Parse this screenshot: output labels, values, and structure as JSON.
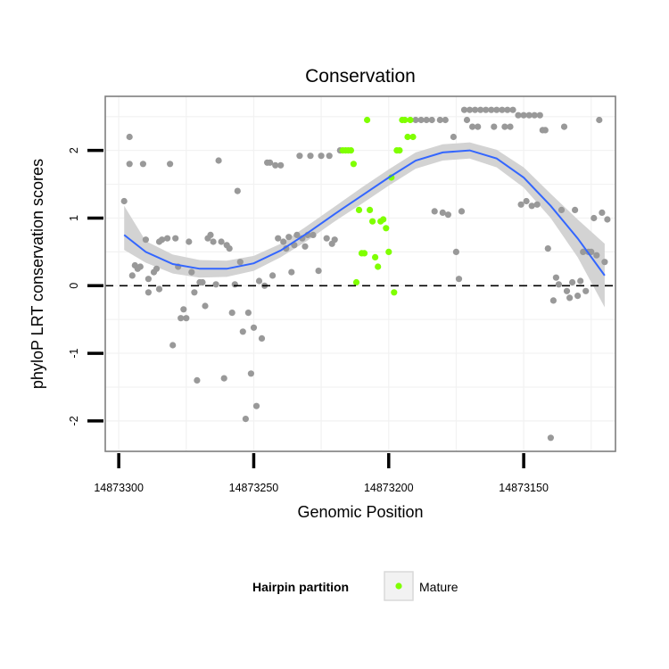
{
  "chart_data": {
    "type": "scatter",
    "title": "Conservation",
    "xlabel": "Genomic Position",
    "ylabel": "phyloP LRT conservation scores",
    "xlim": [
      14873305,
      14873116
    ],
    "ylim": [
      -2.45,
      2.8
    ],
    "x_reversed": true,
    "xticks": [
      14873300,
      14873250,
      14873200,
      14873150
    ],
    "xtick_labels": [
      "14873300",
      "14873250",
      "14873200",
      "14873150"
    ],
    "yticks": [
      -2,
      -1,
      0,
      1,
      2
    ],
    "ytick_labels": [
      "-2",
      "-1",
      "0",
      "1",
      "2"
    ],
    "hline": 0,
    "legend": {
      "title": "Hairpin partition",
      "entries": [
        {
          "label": "Mature",
          "color": "#7FFF00"
        }
      ],
      "position": "bottom"
    },
    "colors": {
      "other": "#999999",
      "mature": "#7FFF00",
      "smooth": "#3366FF",
      "ribbon": "#d3d3d3",
      "panel_border": "#7f7f7f",
      "grid": "#f2f2f2"
    },
    "series": [
      {
        "name": "Other",
        "color": "#999999",
        "points": [
          [
            14873298,
            1.25
          ],
          [
            14873296,
            2.2
          ],
          [
            14873296,
            1.8
          ],
          [
            14873295,
            0.15
          ],
          [
            14873294,
            0.3
          ],
          [
            14873293,
            0.25
          ],
          [
            14873292,
            0.28
          ],
          [
            14873291,
            1.8
          ],
          [
            14873290,
            0.68
          ],
          [
            14873289,
            0.1
          ],
          [
            14873289,
            -0.1
          ],
          [
            14873287,
            0.2
          ],
          [
            14873286,
            0.25
          ],
          [
            14873285,
            0.65
          ],
          [
            14873285,
            -0.05
          ],
          [
            14873284,
            0.68
          ],
          [
            14873282,
            0.7
          ],
          [
            14873281,
            1.8
          ],
          [
            14873280,
            -0.88
          ],
          [
            14873279,
            0.7
          ],
          [
            14873278,
            0.28
          ],
          [
            14873277,
            -0.48
          ],
          [
            14873276,
            -0.35
          ],
          [
            14873275,
            -0.48
          ],
          [
            14873274,
            0.65
          ],
          [
            14873273,
            0.2
          ],
          [
            14873272,
            -0.1
          ],
          [
            14873271,
            -1.4
          ],
          [
            14873270,
            0.05
          ],
          [
            14873269,
            0.05
          ],
          [
            14873268,
            -0.3
          ],
          [
            14873267,
            0.7
          ],
          [
            14873266,
            0.75
          ],
          [
            14873265,
            0.65
          ],
          [
            14873264,
            0.02
          ],
          [
            14873263,
            1.85
          ],
          [
            14873262,
            0.65
          ],
          [
            14873261,
            -1.37
          ],
          [
            14873260,
            0.6
          ],
          [
            14873259,
            0.55
          ],
          [
            14873258,
            -0.4
          ],
          [
            14873257,
            0.02
          ],
          [
            14873256,
            1.4
          ],
          [
            14873255,
            0.35
          ],
          [
            14873254,
            -0.68
          ],
          [
            14873253,
            -1.97
          ],
          [
            14873252,
            -0.4
          ],
          [
            14873251,
            -1.3
          ],
          [
            14873250,
            -0.62
          ],
          [
            14873249,
            -1.78
          ],
          [
            14873248,
            0.07
          ],
          [
            14873247,
            -0.78
          ],
          [
            14873246,
            0.0
          ],
          [
            14873245,
            1.82
          ],
          [
            14873244,
            1.82
          ],
          [
            14873243,
            0.15
          ],
          [
            14873242,
            1.78
          ],
          [
            14873241,
            0.7
          ],
          [
            14873240,
            1.78
          ],
          [
            14873239,
            0.65
          ],
          [
            14873238,
            0.55
          ],
          [
            14873237,
            0.72
          ],
          [
            14873236,
            0.2
          ],
          [
            14873235,
            0.6
          ],
          [
            14873234,
            0.75
          ],
          [
            14873233,
            1.92
          ],
          [
            14873232,
            0.7
          ],
          [
            14873231,
            0.58
          ],
          [
            14873230,
            0.75
          ],
          [
            14873229,
            1.92
          ],
          [
            14873228,
            0.75
          ],
          [
            14873226,
            0.22
          ],
          [
            14873225,
            1.92
          ],
          [
            14873223,
            0.7
          ],
          [
            14873222,
            1.92
          ],
          [
            14873221,
            0.62
          ],
          [
            14873220,
            0.68
          ],
          [
            14873218,
            2.0
          ],
          [
            14873190,
            2.45
          ],
          [
            14873188,
            2.45
          ],
          [
            14873186,
            2.45
          ],
          [
            14873184,
            2.45
          ],
          [
            14873183,
            1.1
          ],
          [
            14873181,
            2.45
          ],
          [
            14873180,
            1.08
          ],
          [
            14873179,
            2.45
          ],
          [
            14873178,
            1.05
          ],
          [
            14873176,
            2.2
          ],
          [
            14873175,
            0.5
          ],
          [
            14873174,
            0.1
          ],
          [
            14873173,
            1.1
          ],
          [
            14873172,
            2.6
          ],
          [
            14873171,
            2.45
          ],
          [
            14873170,
            2.6
          ],
          [
            14873169,
            2.35
          ],
          [
            14873168,
            2.6
          ],
          [
            14873167,
            2.35
          ],
          [
            14873166,
            2.6
          ],
          [
            14873164,
            2.6
          ],
          [
            14873162,
            2.6
          ],
          [
            14873161,
            2.35
          ],
          [
            14873160,
            2.6
          ],
          [
            14873158,
            2.6
          ],
          [
            14873157,
            2.35
          ],
          [
            14873156,
            2.6
          ],
          [
            14873155,
            2.35
          ],
          [
            14873154,
            2.6
          ],
          [
            14873152,
            2.52
          ],
          [
            14873151,
            1.2
          ],
          [
            14873150,
            2.52
          ],
          [
            14873149,
            1.25
          ],
          [
            14873148,
            2.52
          ],
          [
            14873147,
            1.18
          ],
          [
            14873146,
            2.52
          ],
          [
            14873145,
            1.2
          ],
          [
            14873144,
            2.52
          ],
          [
            14873143,
            2.3
          ],
          [
            14873142,
            2.3
          ],
          [
            14873141,
            0.55
          ],
          [
            14873140,
            -2.25
          ],
          [
            14873139,
            -0.22
          ],
          [
            14873138,
            0.12
          ],
          [
            14873137,
            0.02
          ],
          [
            14873136,
            1.12
          ],
          [
            14873135,
            2.35
          ],
          [
            14873134,
            -0.08
          ],
          [
            14873133,
            -0.18
          ],
          [
            14873132,
            0.05
          ],
          [
            14873131,
            1.12
          ],
          [
            14873130,
            -0.15
          ],
          [
            14873129,
            0.07
          ],
          [
            14873128,
            0.5
          ],
          [
            14873127,
            -0.08
          ],
          [
            14873126,
            0.5
          ],
          [
            14873125,
            0.5
          ],
          [
            14873124,
            1.0
          ],
          [
            14873123,
            0.45
          ],
          [
            14873122,
            2.45
          ],
          [
            14873121,
            1.08
          ],
          [
            14873120,
            0.35
          ],
          [
            14873119,
            0.98
          ]
        ]
      },
      {
        "name": "Mature",
        "color": "#7FFF00",
        "points": [
          [
            14873217,
            2.0
          ],
          [
            14873216,
            2.0
          ],
          [
            14873215,
            2.0
          ],
          [
            14873214,
            2.0
          ],
          [
            14873213,
            1.8
          ],
          [
            14873212,
            0.05
          ],
          [
            14873211,
            1.12
          ],
          [
            14873210,
            0.48
          ],
          [
            14873209,
            0.48
          ],
          [
            14873208,
            2.45
          ],
          [
            14873207,
            1.12
          ],
          [
            14873206,
            0.95
          ],
          [
            14873205,
            0.42
          ],
          [
            14873204,
            0.28
          ],
          [
            14873203,
            0.95
          ],
          [
            14873202,
            0.98
          ],
          [
            14873201,
            0.85
          ],
          [
            14873200,
            0.5
          ],
          [
            14873199,
            1.6
          ],
          [
            14873198,
            -0.1
          ],
          [
            14873197,
            2.0
          ],
          [
            14873196,
            2.0
          ],
          [
            14873195,
            2.45
          ],
          [
            14873194,
            2.45
          ],
          [
            14873193,
            2.2
          ],
          [
            14873192,
            2.45
          ],
          [
            14873191,
            2.2
          ]
        ]
      }
    ],
    "smooth": {
      "x": [
        14873298,
        14873290,
        14873280,
        14873270,
        14873260,
        14873250,
        14873240,
        14873230,
        14873220,
        14873210,
        14873200,
        14873190,
        14873180,
        14873170,
        14873160,
        14873150,
        14873140,
        14873130,
        14873120
      ],
      "y": [
        0.75,
        0.5,
        0.32,
        0.25,
        0.25,
        0.33,
        0.52,
        0.78,
        1.06,
        1.33,
        1.6,
        1.85,
        1.97,
        2.0,
        1.88,
        1.6,
        1.18,
        0.7,
        0.15
      ],
      "lower": [
        0.53,
        0.34,
        0.18,
        0.12,
        0.13,
        0.22,
        0.42,
        0.67,
        0.95,
        1.21,
        1.48,
        1.73,
        1.85,
        1.88,
        1.75,
        1.45,
        1.0,
        0.42,
        -0.32
      ],
      "upper": [
        1.18,
        0.66,
        0.46,
        0.38,
        0.37,
        0.44,
        0.62,
        0.89,
        1.17,
        1.45,
        1.72,
        1.97,
        2.09,
        2.12,
        2.01,
        1.75,
        1.36,
        0.98,
        0.62
      ]
    }
  }
}
